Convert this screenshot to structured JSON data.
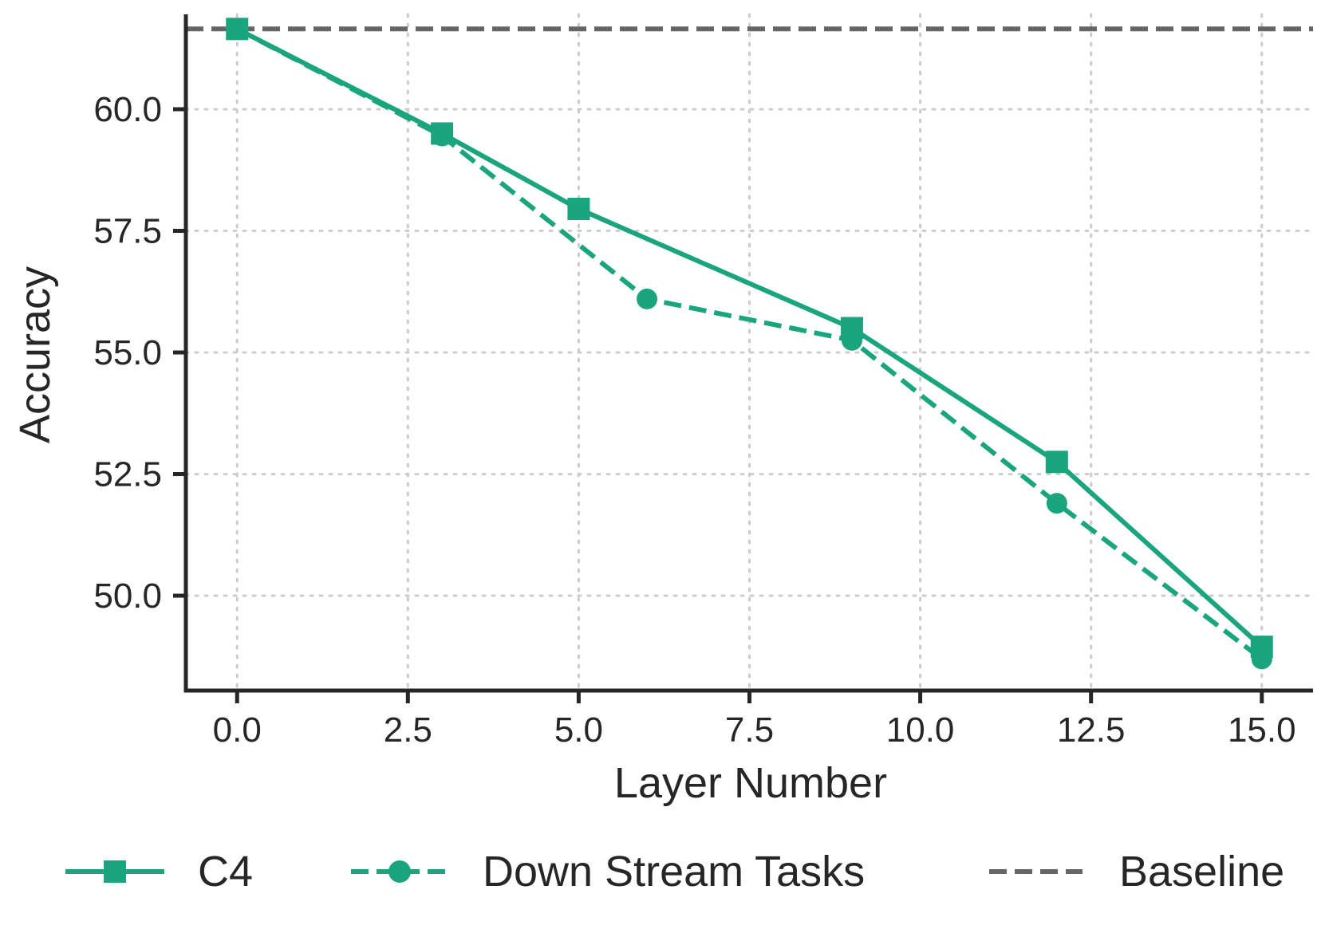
{
  "chart_data": {
    "type": "line",
    "title": "",
    "xlabel": "Layer Number",
    "ylabel": "Accuracy",
    "xlim": [
      -0.75,
      15.75
    ],
    "ylim": [
      48.05,
      61.95
    ],
    "xticks": [
      0.0,
      2.5,
      5.0,
      7.5,
      10.0,
      12.5,
      15.0
    ],
    "xtick_labels": [
      "0.0",
      "2.5",
      "5.0",
      "7.5",
      "10.0",
      "12.5",
      "15.0"
    ],
    "yticks": [
      50.0,
      52.5,
      55.0,
      57.5,
      60.0
    ],
    "ytick_labels": [
      "50.0",
      "52.5",
      "55.0",
      "57.5",
      "60.0"
    ],
    "grid": true,
    "legend_position": "bottom",
    "series": [
      {
        "name": "C4",
        "style": "solid",
        "marker": "square",
        "color": "#1aa57f",
        "x": [
          0,
          3,
          5,
          9,
          12,
          15
        ],
        "y": [
          61.65,
          59.5,
          57.95,
          55.5,
          52.75,
          48.95
        ]
      },
      {
        "name": "Down Stream Tasks",
        "style": "dashed",
        "marker": "circle",
        "color": "#1aa57f",
        "x": [
          0,
          3,
          6,
          9,
          12,
          15
        ],
        "y": [
          61.65,
          59.45,
          56.1,
          55.25,
          51.9,
          48.7
        ]
      }
    ],
    "baseline": {
      "name": "Baseline",
      "style": "dashed",
      "color": "#666666",
      "y": 61.65
    }
  }
}
